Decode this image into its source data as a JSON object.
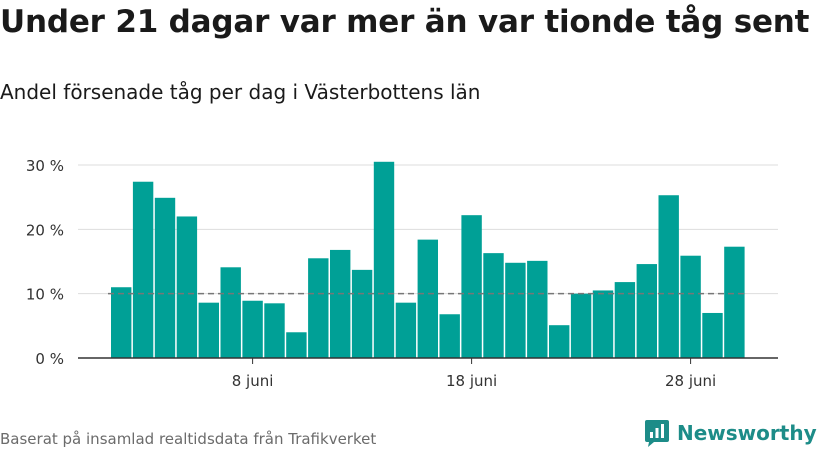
{
  "title": "Under 21 dagar var mer än var tionde tåg sent",
  "subtitle": "Andel försenade tåg per dag i Västerbottens län",
  "footer": "Baserat på insamlad realtidsdata från Trafikverket",
  "brand": "Newsworthy",
  "colors": {
    "bar": "#00a096",
    "reference": "#777777",
    "grid": "#dddddd",
    "brand": "#1d8c88"
  },
  "chart_data": {
    "type": "bar",
    "x": [
      "2 juni",
      "3 juni",
      "4 juni",
      "5 juni",
      "6 juni",
      "7 juni",
      "8 juni",
      "9 juni",
      "10 juni",
      "11 juni",
      "12 juni",
      "13 juni",
      "14 juni",
      "15 juni",
      "16 juni",
      "17 juni",
      "18 juni",
      "19 juni",
      "20 juni",
      "21 juni",
      "22 juni",
      "23 juni",
      "24 juni",
      "25 juni",
      "26 juni",
      "27 juni",
      "28 juni",
      "29 juni",
      "30 juni"
    ],
    "values": [
      11,
      27.4,
      24.9,
      22,
      8.6,
      14.1,
      8.9,
      8.5,
      4,
      15.5,
      16.8,
      13.7,
      30.5,
      8.6,
      18.4,
      6.8,
      22.2,
      16.3,
      14.8,
      15.1,
      5.1,
      10,
      10.5,
      11.8,
      14.6,
      25.3,
      15.9,
      7,
      17.3
    ],
    "unit": "%",
    "reference_line": 10,
    "ylim": [
      0,
      30
    ],
    "y_ticks": [
      {
        "value": 0,
        "label": "0 %"
      },
      {
        "value": 10,
        "label": "10 %"
      },
      {
        "value": 20,
        "label": "20 %"
      },
      {
        "value": 30,
        "label": "30 %"
      }
    ],
    "x_ticks": [
      {
        "value": "8 juni",
        "label": "8 juni"
      },
      {
        "value": "18 juni",
        "label": "18 juni"
      },
      {
        "value": "28 juni",
        "label": "28 juni"
      }
    ],
    "grid": true,
    "xlabel": "",
    "ylabel": ""
  }
}
